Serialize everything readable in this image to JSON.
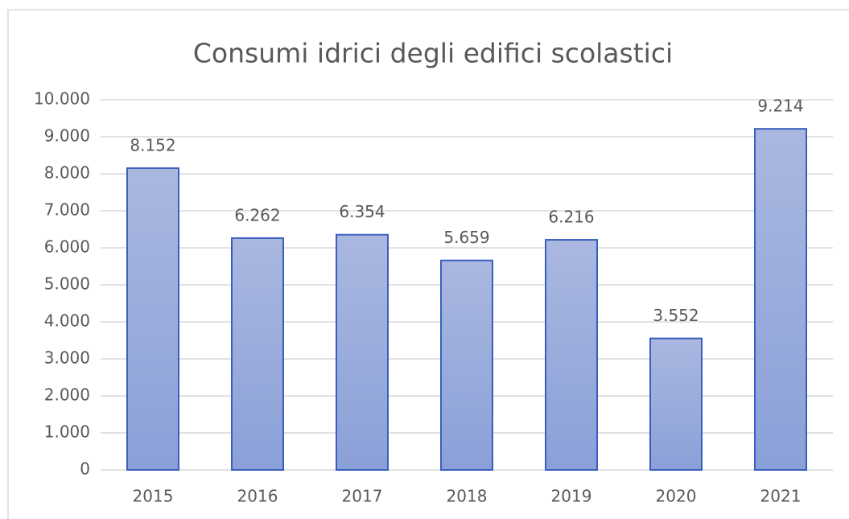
{
  "chart_data": {
    "type": "bar",
    "title": "Consumi idrici degli edifici scolastici",
    "categories": [
      "2015",
      "2016",
      "2017",
      "2018",
      "2019",
      "2020",
      "2021"
    ],
    "values": [
      8152,
      6262,
      6354,
      5659,
      6216,
      3552,
      9214
    ],
    "value_labels": [
      "8.152",
      "6.262",
      "6.354",
      "5.659",
      "6.216",
      "3.552",
      "9.214"
    ],
    "color": "#8ea2d9",
    "edge_color": "#3b5fbd",
    "ylim": [
      0,
      10000
    ],
    "yticks": [
      0,
      {
        "value": 1000,
        "label": "1.000"
      },
      {
        "value": 2000,
        "label": "2.000"
      },
      {
        "value": 3000,
        "label": "3.000"
      },
      {
        "value": 4000,
        "label": "4.000"
      },
      {
        "value": 5000,
        "label": "5.000"
      },
      {
        "value": 6000,
        "label": "6.000"
      },
      {
        "value": 7000,
        "label": "7.000"
      },
      {
        "value": 8000,
        "label": "8.000"
      },
      {
        "value": 9000,
        "label": "9.000"
      },
      {
        "value": 10000,
        "label": "10.000"
      }
    ],
    "grid": true
  }
}
